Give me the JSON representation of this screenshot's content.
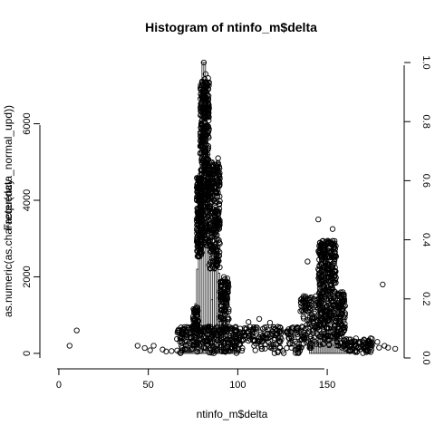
{
  "chart_data": {
    "type": "histogram",
    "title": "Histogram of ntinfo_m$delta",
    "xlabel": "ntinfo_m$delta",
    "ylabel_left": "as.numeric(as.character(data_normal_upd))",
    "ylabel_left_overprint": "Frequency",
    "x_ticks": [
      0,
      50,
      100,
      150
    ],
    "y_left_ticks": [
      0,
      2000,
      4000,
      6000
    ],
    "y_right_ticks": [
      "0.0",
      "0.2",
      "0.4",
      "0.6",
      "0.8",
      "1.0"
    ],
    "xlim": [
      -3,
      193
    ],
    "ylim_left": [
      -120,
      7600
    ],
    "ylim_right": [
      0,
      1
    ],
    "bin_width": 1,
    "histogram": {
      "bin_starts": [
        66,
        67,
        68,
        69,
        70,
        71,
        72,
        73,
        74,
        75,
        76,
        77,
        78,
        79,
        80,
        81,
        82,
        83,
        84,
        85,
        86,
        87,
        88,
        89,
        90,
        91,
        92,
        93,
        94,
        95,
        96,
        97,
        98,
        99,
        100,
        140,
        141,
        142,
        143,
        144,
        145,
        146,
        147,
        148,
        149,
        150,
        151,
        152,
        153,
        154,
        155,
        156,
        157,
        158,
        159,
        160,
        161,
        162,
        163
      ],
      "counts": [
        50,
        80,
        110,
        160,
        220,
        300,
        380,
        520,
        750,
        1000,
        1300,
        2200,
        4500,
        7050,
        7600,
        7600,
        7050,
        5200,
        3000,
        1400,
        2200,
        3800,
        3400,
        2100,
        900,
        700,
        1000,
        900,
        700,
        380,
        260,
        180,
        120,
        80,
        50,
        150,
        200,
        260,
        300,
        350,
        400,
        450,
        500,
        560,
        600,
        620,
        600,
        560,
        500,
        400,
        350,
        280,
        220,
        160,
        120,
        80,
        50,
        30,
        20
      ]
    },
    "scatter_clusters": [
      {
        "x_min": 75,
        "x_max": 78,
        "y_min": 400,
        "y_max": 1200,
        "count": 60
      },
      {
        "x_min": 77,
        "x_max": 80,
        "y_min": 2500,
        "y_max": 4600,
        "count": 200
      },
      {
        "x_min": 79,
        "x_max": 84,
        "y_min": 2800,
        "y_max": 7200,
        "count": 380
      },
      {
        "x_min": 84,
        "x_max": 90,
        "y_min": 2200,
        "y_max": 5000,
        "count": 260
      },
      {
        "x_min": 90,
        "x_max": 95,
        "y_min": 700,
        "y_max": 2000,
        "count": 110
      },
      {
        "x_min": 66,
        "x_max": 100,
        "y_min": 0,
        "y_max": 700,
        "count": 260
      },
      {
        "x_min": 100,
        "x_max": 135,
        "y_min": 0,
        "y_max": 700,
        "count": 180
      },
      {
        "x_min": 135,
        "x_max": 145,
        "y_min": 100,
        "y_max": 1500,
        "count": 120
      },
      {
        "x_min": 145,
        "x_max": 155,
        "y_min": 200,
        "y_max": 2950,
        "count": 380
      },
      {
        "x_min": 155,
        "x_max": 160,
        "y_min": 100,
        "y_max": 1600,
        "count": 120
      },
      {
        "x_min": 160,
        "x_max": 175,
        "y_min": 0,
        "y_max": 400,
        "count": 80
      }
    ],
    "scatter_points": [
      {
        "x": 6,
        "y": 200
      },
      {
        "x": 10,
        "y": 600
      },
      {
        "x": 44,
        "y": 200
      },
      {
        "x": 48,
        "y": 140
      },
      {
        "x": 51,
        "y": 80
      },
      {
        "x": 53,
        "y": 200
      },
      {
        "x": 58,
        "y": 100
      },
      {
        "x": 60,
        "y": 50
      },
      {
        "x": 63,
        "y": 60
      },
      {
        "x": 81,
        "y": 7600
      },
      {
        "x": 82,
        "y": 7300
      },
      {
        "x": 89,
        "y": 5100
      },
      {
        "x": 145,
        "y": 3500
      },
      {
        "x": 153,
        "y": 3250
      },
      {
        "x": 139,
        "y": 2400
      },
      {
        "x": 175,
        "y": 200
      },
      {
        "x": 178,
        "y": 300
      },
      {
        "x": 179,
        "y": 150
      },
      {
        "x": 181,
        "y": 1800
      },
      {
        "x": 182,
        "y": 200
      },
      {
        "x": 184,
        "y": 150
      },
      {
        "x": 188,
        "y": 120
      },
      {
        "x": 175,
        "y": 280
      },
      {
        "x": 112,
        "y": 900
      },
      {
        "x": 118,
        "y": 800
      },
      {
        "x": 106,
        "y": 820
      }
    ]
  }
}
